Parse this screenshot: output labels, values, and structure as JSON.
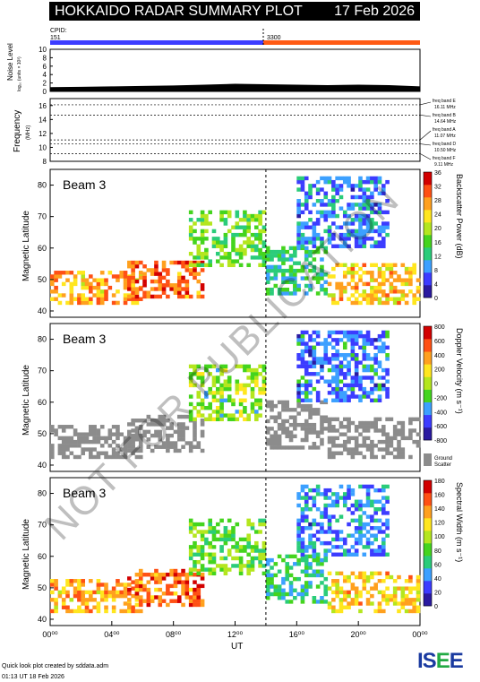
{
  "header": {
    "title": "HOKKAIDO RADAR SUMMARY PLOT",
    "date": "17 Feb 2026"
  },
  "cpid": {
    "label": "CPID:",
    "left_value": "151",
    "right_value": "3300",
    "left_color": "#3c3cff",
    "right_color": "#ff5a14"
  },
  "noise": {
    "ylabel": "Noise Level",
    "ylabel_sub": "log₁₀ (units × 10³)",
    "ticks": [
      "0",
      "2",
      "4",
      "6",
      "8",
      "10"
    ]
  },
  "frequency": {
    "ylabel": "Frequency",
    "unit": "(MHz)",
    "ticks": [
      "8",
      "10",
      "12",
      "14",
      "16"
    ],
    "bands": [
      {
        "name": "freq band E",
        "value": "16.11 MHz"
      },
      {
        "name": "freq band B",
        "value": "14.64 MHz"
      },
      {
        "name": "freq band A",
        "value": "11.07 MHz"
      },
      {
        "name": "freq band D",
        "value": "10.50 MHz"
      },
      {
        "name": "freq band F",
        "value": "9.11 MHz"
      }
    ]
  },
  "panels": [
    {
      "beam": "Beam  3",
      "ylabel": "Magnetic Latitude",
      "cbar_label": "Backscatter Power (dB)",
      "cbar_ticks": [
        "0",
        "4",
        "8",
        "12",
        "16",
        "20",
        "24",
        "28",
        "32",
        "36"
      ],
      "ground_label": ""
    },
    {
      "beam": "Beam  3",
      "ylabel": "Magnetic Latitude",
      "cbar_label": "Doppler Velocity (m s⁻¹)",
      "cbar_ticks": [
        "-800",
        "-600",
        "-400",
        "-200",
        "0",
        "200",
        "400",
        "600",
        "800"
      ],
      "ground_label": "Ground Scatter"
    },
    {
      "beam": "Beam  3",
      "ylabel": "Magnetic Latitude",
      "cbar_label": "Spectral Width (m s⁻¹)",
      "cbar_ticks": [
        "0",
        "20",
        "40",
        "60",
        "80",
        "100",
        "120",
        "140",
        "160",
        "180"
      ],
      "ground_label": ""
    }
  ],
  "lat_ticks": [
    "40",
    "50",
    "60",
    "70",
    "80"
  ],
  "xaxis": {
    "label": "UT",
    "ticks": [
      "00⁰⁰",
      "04⁰⁰",
      "08⁰⁰",
      "12⁰⁰",
      "16⁰⁰",
      "20⁰⁰",
      "00⁰⁰"
    ]
  },
  "footer": {
    "credit": "Quick look plot created by sddata.adm",
    "generated": "01:13 UT 18 Feb 2026",
    "logo": "ISEE"
  },
  "watermark": "NOT FOR PUBLICATION",
  "chart_data": [
    {
      "type": "area",
      "title": "Noise Level",
      "x": [
        0,
        2,
        4,
        6,
        8,
        10,
        12,
        14,
        16,
        18,
        20,
        22,
        24
      ],
      "values": [
        1.0,
        1.1,
        1.2,
        1.3,
        1.4,
        1.6,
        1.8,
        1.7,
        1.6,
        1.5,
        1.6,
        1.5,
        1.2
      ],
      "ylim": [
        0,
        10
      ]
    },
    {
      "type": "line",
      "title": "Frequency",
      "x": [
        0,
        24
      ],
      "ylim": [
        8,
        17
      ],
      "bands_mhz": [
        16.11,
        14.64,
        11.07,
        10.5,
        9.11
      ]
    },
    {
      "type": "heatmap",
      "title": "Backscatter Power (dB)",
      "xlim": [
        0,
        24
      ],
      "ylim": [
        38,
        85
      ],
      "zlim": [
        0,
        36
      ]
    },
    {
      "type": "heatmap",
      "title": "Doppler Velocity (m s⁻¹)",
      "xlim": [
        0,
        24
      ],
      "ylim": [
        38,
        85
      ],
      "zlim": [
        -800,
        800
      ]
    },
    {
      "type": "heatmap",
      "title": "Spectral Width (m s⁻¹)",
      "xlim": [
        0,
        24
      ],
      "ylim": [
        38,
        85
      ],
      "zlim": [
        0,
        180
      ]
    }
  ]
}
